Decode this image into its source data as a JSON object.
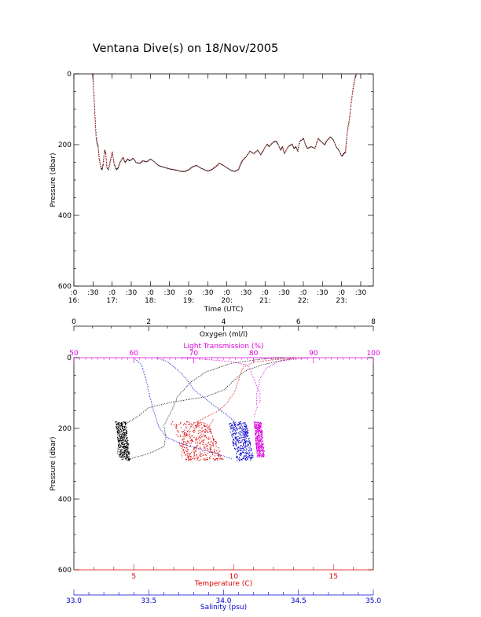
{
  "title": "Ventana Dive(s) on 18/Nov/2005",
  "chart_data": [
    {
      "type": "line",
      "series": [
        {
          "values": [
            [
              16.48,
              0
            ],
            [
              16.5,
              20
            ],
            [
              16.52,
              60
            ],
            [
              16.54,
              100
            ],
            [
              16.56,
              140
            ],
            [
              16.58,
              180
            ],
            [
              16.6,
              195
            ],
            [
              16.63,
              205
            ],
            [
              16.66,
              240
            ],
            [
              16.7,
              265
            ],
            [
              16.73,
              270
            ],
            [
              16.76,
              255
            ],
            [
              16.8,
              215
            ],
            [
              16.83,
              225
            ],
            [
              16.86,
              265
            ],
            [
              16.9,
              270
            ],
            [
              16.95,
              245
            ],
            [
              17.0,
              220
            ],
            [
              17.05,
              255
            ],
            [
              17.1,
              270
            ],
            [
              17.15,
              265
            ],
            [
              17.2,
              250
            ],
            [
              17.28,
              235
            ],
            [
              17.33,
              250
            ],
            [
              17.4,
              240
            ],
            [
              17.45,
              245
            ],
            [
              17.55,
              238
            ],
            [
              17.62,
              250
            ],
            [
              17.72,
              252
            ],
            [
              17.8,
              245
            ],
            [
              17.9,
              248
            ],
            [
              18.0,
              240
            ],
            [
              18.1,
              248
            ],
            [
              18.2,
              258
            ],
            [
              18.3,
              262
            ],
            [
              18.4,
              265
            ],
            [
              18.5,
              268
            ],
            [
              18.6,
              270
            ],
            [
              18.7,
              272
            ],
            [
              18.8,
              275
            ],
            [
              18.9,
              275
            ],
            [
              19.0,
              270
            ],
            [
              19.1,
              262
            ],
            [
              19.2,
              258
            ],
            [
              19.3,
              265
            ],
            [
              19.4,
              270
            ],
            [
              19.5,
              274
            ],
            [
              19.6,
              270
            ],
            [
              19.7,
              262
            ],
            [
              19.8,
              252
            ],
            [
              19.9,
              258
            ],
            [
              20.0,
              265
            ],
            [
              20.1,
              272
            ],
            [
              20.2,
              275
            ],
            [
              20.3,
              270
            ],
            [
              20.35,
              255
            ],
            [
              20.4,
              245
            ],
            [
              20.5,
              233
            ],
            [
              20.6,
              218
            ],
            [
              20.7,
              225
            ],
            [
              20.8,
              215
            ],
            [
              20.88,
              228
            ],
            [
              20.95,
              215
            ],
            [
              21.05,
              198
            ],
            [
              21.1,
              205
            ],
            [
              21.2,
              193
            ],
            [
              21.28,
              190
            ],
            [
              21.33,
              198
            ],
            [
              21.4,
              215
            ],
            [
              21.45,
              205
            ],
            [
              21.5,
              225
            ],
            [
              21.6,
              205
            ],
            [
              21.7,
              198
            ],
            [
              21.75,
              210
            ],
            [
              21.8,
              205
            ],
            [
              21.85,
              218
            ],
            [
              21.9,
              190
            ],
            [
              22.0,
              182
            ],
            [
              22.05,
              200
            ],
            [
              22.1,
              210
            ],
            [
              22.2,
              205
            ],
            [
              22.3,
              210
            ],
            [
              22.38,
              182
            ],
            [
              22.45,
              190
            ],
            [
              22.55,
              200
            ],
            [
              22.6,
              190
            ],
            [
              22.7,
              178
            ],
            [
              22.78,
              186
            ],
            [
              22.85,
              205
            ],
            [
              22.92,
              215
            ],
            [
              23.0,
              232
            ],
            [
              23.05,
              225
            ],
            [
              23.1,
              220
            ],
            [
              23.12,
              190
            ],
            [
              23.15,
              160
            ],
            [
              23.2,
              130
            ],
            [
              23.25,
              80
            ],
            [
              23.3,
              40
            ],
            [
              23.35,
              10
            ],
            [
              23.38,
              0
            ]
          ]
        }
      ],
      "xlabel": "Time (UTC)",
      "ylabel": "Pressure (dbar)",
      "xlim": [
        16.0,
        23.83
      ],
      "ylim": [
        600,
        0
      ],
      "x_ticks": [
        ":0",
        ":30",
        ":0",
        ":30",
        ":0",
        ":30",
        ":0",
        ":30",
        ":0",
        ":30",
        ":0",
        ":30",
        ":0",
        ":30",
        ":0",
        ":30"
      ],
      "x_hour_labels": [
        "16:",
        "17:",
        "18:",
        "19:",
        "20:",
        "21:",
        "22:",
        "23:"
      ],
      "y_ticks": [
        "0",
        "200",
        "400",
        "600"
      ],
      "colors": {
        "line": "#cc0000",
        "markers": "#000000"
      },
      "grid": false
    },
    {
      "type": "scatter",
      "ylabel": "Pressure (dbar)",
      "ylim": [
        600,
        0
      ],
      "y_ticks": [
        "0",
        "200",
        "400",
        "600"
      ],
      "axes": {
        "oxygen": {
          "label": "Oxygen (ml/l)",
          "range": [
            0,
            8
          ],
          "ticks": [
            "0",
            "2",
            "4",
            "6",
            "8"
          ],
          "color": "#000000",
          "position": "top"
        },
        "transmission": {
          "label": "Light Transmission (%)",
          "range": [
            50,
            100
          ],
          "ticks": [
            "50",
            "60",
            "70",
            "80",
            "90",
            "100"
          ],
          "color": "#dd00dd",
          "position": "top"
        },
        "temperature": {
          "label": "Temperature (C)",
          "range": [
            2,
            17
          ],
          "ticks": [
            "5",
            "10",
            "15"
          ],
          "color": "#dd0000",
          "position": "bottom"
        },
        "salinity": {
          "label": "Salinity (psu)",
          "range": [
            33.0,
            35.0
          ],
          "ticks": [
            "33.0",
            "33.5",
            "34.0",
            "34.5",
            "35.0"
          ],
          "color": "#0000cc",
          "position": "bottom"
        }
      },
      "series": [
        {
          "axis": "oxygen",
          "color": "#000000",
          "down": [
            [
              5.9,
              0
            ],
            [
              5.5,
              8
            ],
            [
              5.0,
              20
            ],
            [
              4.6,
              35
            ],
            [
              4.3,
              60
            ],
            [
              4.0,
              90
            ],
            [
              3.5,
              110
            ],
            [
              2.6,
              125
            ],
            [
              2.0,
              140
            ],
            [
              1.7,
              165
            ],
            [
              1.4,
              185
            ],
            [
              1.3,
              210
            ],
            [
              1.2,
              240
            ],
            [
              1.15,
              270
            ],
            [
              1.3,
              285
            ]
          ],
          "up": [
            [
              1.5,
              285
            ],
            [
              2.0,
              270
            ],
            [
              2.4,
              250
            ],
            [
              2.45,
              225
            ],
            [
              2.4,
              190
            ],
            [
              2.6,
              150
            ],
            [
              2.75,
              110
            ],
            [
              3.1,
              70
            ],
            [
              3.5,
              40
            ],
            [
              4.2,
              15
            ],
            [
              5.0,
              3
            ],
            [
              5.6,
              0
            ]
          ],
          "cluster": {
            "x": [
              1.1,
              1.5
            ],
            "y": [
              180,
              290
            ]
          }
        },
        {
          "axis": "transmission",
          "color": "#dd00dd",
          "line": [
            [
              89,
              0
            ],
            [
              86,
              5
            ],
            [
              84,
              10
            ],
            [
              82,
              30
            ],
            [
              81,
              60
            ],
            [
              80.5,
              100
            ],
            [
              80.5,
              140
            ],
            [
              80,
              170
            ]
          ],
          "line2": [
            [
              68,
              0
            ],
            [
              72,
              4
            ],
            [
              76,
              10
            ],
            [
              79,
              20
            ],
            [
              80,
              60
            ],
            [
              81,
              100
            ],
            [
              81,
              130
            ]
          ],
          "cluster": {
            "x": [
              80.0,
              81.8
            ],
            "y": [
              180,
              280
            ]
          }
        },
        {
          "axis": "temperature",
          "color": "#dd0000",
          "down": [
            [
              13,
              0
            ],
            [
              12,
              5
            ],
            [
              11,
              12
            ],
            [
              10.5,
              25
            ],
            [
              10.3,
              45
            ],
            [
              10.2,
              70
            ],
            [
              10.0,
              100
            ],
            [
              9.6,
              130
            ],
            [
              9.2,
              150
            ],
            [
              8.5,
              170
            ],
            [
              8.0,
              185
            ],
            [
              7.7,
              205
            ],
            [
              7.5,
              230
            ],
            [
              7.4,
              255
            ],
            [
              7.4,
              285
            ]
          ],
          "up": [
            [
              7.6,
              285
            ],
            [
              8.0,
              260
            ],
            [
              8.3,
              230
            ],
            [
              8.7,
              200
            ],
            [
              9.0,
              170
            ]
          ],
          "cluster": {
            "x": [
              6.8,
              9.5
            ],
            "y": [
              180,
              290
            ]
          }
        },
        {
          "axis": "salinity",
          "color": "#0000cc",
          "down": [
            [
              33.55,
              0
            ],
            [
              33.62,
              10
            ],
            [
              33.68,
              30
            ],
            [
              33.74,
              55
            ],
            [
              33.8,
              90
            ],
            [
              33.92,
              130
            ],
            [
              34.0,
              155
            ],
            [
              34.06,
              175
            ],
            [
              34.12,
              200
            ],
            [
              34.14,
              230
            ],
            [
              34.15,
              260
            ],
            [
              34.15,
              285
            ]
          ],
          "up": [
            [
              34.05,
              285
            ],
            [
              33.95,
              270
            ],
            [
              33.82,
              255
            ],
            [
              33.7,
              240
            ],
            [
              33.62,
              225
            ],
            [
              33.58,
              205
            ],
            [
              33.56,
              190
            ],
            [
              33.53,
              150
            ],
            [
              33.5,
              100
            ],
            [
              33.48,
              60
            ],
            [
              33.45,
              20
            ],
            [
              33.4,
              0
            ]
          ],
          "cluster": {
            "x": [
              34.03,
              34.2
            ],
            "y": [
              180,
              290
            ]
          }
        }
      ],
      "grid": false
    }
  ]
}
